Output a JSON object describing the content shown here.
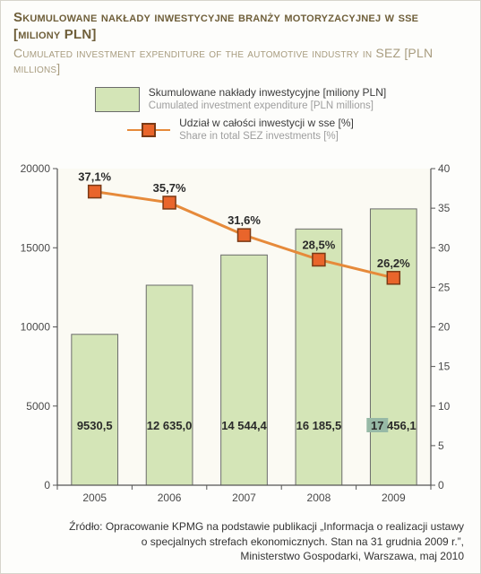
{
  "title_pl": "Skumulowane nakłady inwestycyjne branży motoryzacyjnej w sse [miliony PLN]",
  "title_en": "Cumulated investment expenditure of the automotive industry in SEZ [PLN millions]",
  "legend": {
    "bar_pl": "Skumulowane nakłady inwestycyjne [miliony PLN]",
    "bar_en": "Cumulated investment expenditure [PLN millions]",
    "line_pl": "Udział w całości inwestycji w sse [%]",
    "line_en": "Share in total SEZ investments [%]"
  },
  "chart": {
    "type": "bar+line",
    "categories": [
      "2005",
      "2006",
      "2007",
      "2008",
      "2009"
    ],
    "bars": {
      "values": [
        9530.5,
        12635.0,
        14544.4,
        16185.5,
        17456.1
      ],
      "value_labels": [
        "9530,5",
        "12 635,0",
        "14 544,4",
        "16 185,5",
        "17 456,1"
      ],
      "fill": "#d4e5b7",
      "stroke": "#6b6b6b",
      "bar_width_ratio": 0.62
    },
    "line": {
      "values": [
        37.1,
        35.7,
        31.6,
        28.5,
        26.2
      ],
      "value_labels": [
        "37,1%",
        "35,7%",
        "31,6%",
        "28,5%",
        "26,2%"
      ],
      "stroke": "#e68a3a",
      "stroke_width": 3,
      "marker_fill": "#e9652b",
      "marker_stroke": "#7a3a16",
      "marker_size": 14
    },
    "y_left": {
      "min": 0,
      "max": 20000,
      "ticks": [
        0,
        5000,
        10000,
        15000,
        20000
      ]
    },
    "y_right": {
      "min": 0,
      "max": 40,
      "ticks": [
        0,
        5,
        10,
        15,
        20,
        25,
        30,
        35,
        40
      ]
    },
    "background": "#fbfaf3",
    "axis_color": "#555555",
    "tick_font_size": 12,
    "label_font_size": 13,
    "highlight_last_bar_label_bg": "#97b9a6"
  },
  "source": {
    "line1": "Źródło: Opracowanie KPMG na podstawie publikacji „Informacja o realizacji ustawy",
    "line2": "o specjalnych strefach ekonomicznych. Stan na 31 grudnia 2009 r.”,",
    "line3": "Ministerstwo Gospodarki, Warszawa, maj 2010"
  }
}
